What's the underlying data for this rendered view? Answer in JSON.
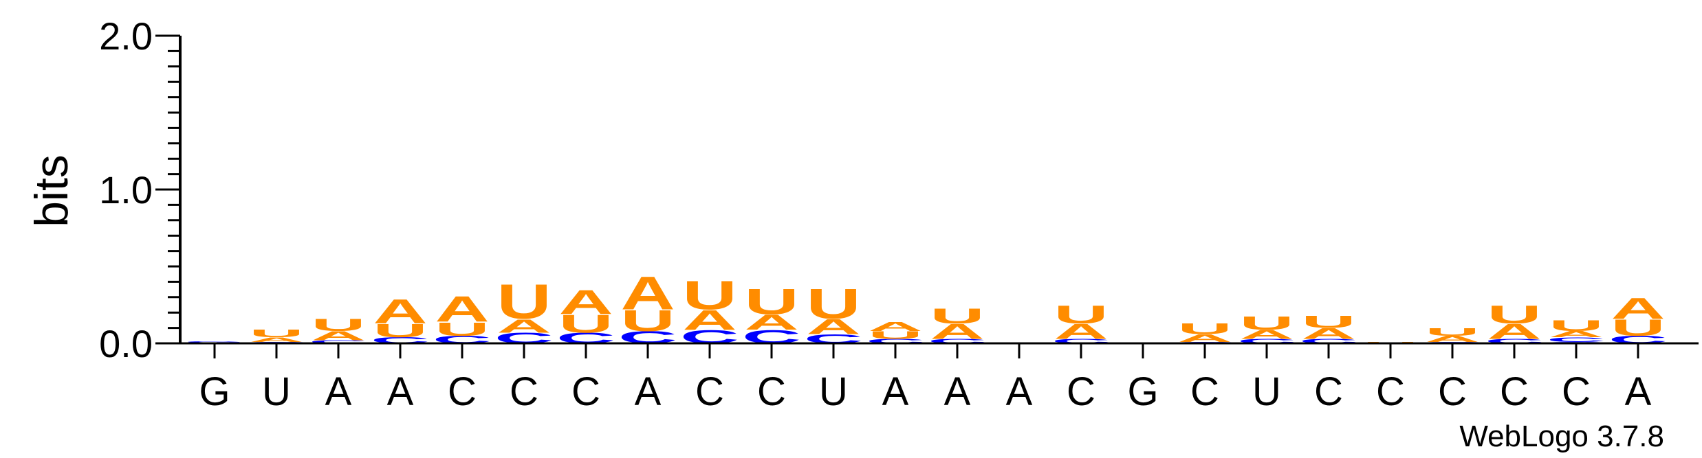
{
  "chart_data": {
    "type": "sequence-logo",
    "ylabel": "bits",
    "ylim": [
      0,
      2.0
    ],
    "yticks": [
      "0.0",
      "1.0",
      "2.0"
    ],
    "xticks": [
      "G",
      "U",
      "A",
      "A",
      "C",
      "C",
      "C",
      "A",
      "C",
      "C",
      "U",
      "A",
      "A",
      "A",
      "C",
      "G",
      "C",
      "U",
      "C",
      "C",
      "C",
      "C",
      "C",
      "A"
    ],
    "credit": "WebLogo 3.7.8",
    "colors": {
      "A": "#ff8c00",
      "U": "#ff8c00",
      "C": "#0000ff",
      "G": "#0000ff"
    },
    "columns": [
      {
        "stack": [
          {
            "letter": "C",
            "bits": 0.005
          },
          {
            "letter": "G",
            "bits": 0.01
          }
        ]
      },
      {
        "stack": [
          {
            "letter": "C",
            "bits": 0.01
          },
          {
            "letter": "A",
            "bits": 0.03
          },
          {
            "letter": "U",
            "bits": 0.05
          }
        ]
      },
      {
        "stack": [
          {
            "letter": "C",
            "bits": 0.02
          },
          {
            "letter": "A",
            "bits": 0.06
          },
          {
            "letter": "U",
            "bits": 0.08
          }
        ]
      },
      {
        "stack": [
          {
            "letter": "C",
            "bits": 0.04
          },
          {
            "letter": "U",
            "bits": 0.09
          },
          {
            "letter": "A",
            "bits": 0.16
          }
        ]
      },
      {
        "stack": [
          {
            "letter": "C",
            "bits": 0.05
          },
          {
            "letter": "U",
            "bits": 0.09
          },
          {
            "letter": "A",
            "bits": 0.17
          }
        ]
      },
      {
        "stack": [
          {
            "letter": "C",
            "bits": 0.07
          },
          {
            "letter": "A",
            "bits": 0.09
          },
          {
            "letter": "U",
            "bits": 0.23
          }
        ]
      },
      {
        "stack": [
          {
            "letter": "C",
            "bits": 0.07
          },
          {
            "letter": "U",
            "bits": 0.12
          },
          {
            "letter": "A",
            "bits": 0.16
          }
        ]
      },
      {
        "stack": [
          {
            "letter": "C",
            "bits": 0.08
          },
          {
            "letter": "U",
            "bits": 0.14
          },
          {
            "letter": "A",
            "bits": 0.22
          }
        ]
      },
      {
        "stack": [
          {
            "letter": "C",
            "bits": 0.09
          },
          {
            "letter": "A",
            "bits": 0.13
          },
          {
            "letter": "U",
            "bits": 0.19
          }
        ]
      },
      {
        "stack": [
          {
            "letter": "C",
            "bits": 0.09
          },
          {
            "letter": "A",
            "bits": 0.1
          },
          {
            "letter": "U",
            "bits": 0.17
          }
        ]
      },
      {
        "stack": [
          {
            "letter": "C",
            "bits": 0.06
          },
          {
            "letter": "A",
            "bits": 0.1
          },
          {
            "letter": "U",
            "bits": 0.2
          }
        ]
      },
      {
        "stack": [
          {
            "letter": "C",
            "bits": 0.03
          },
          {
            "letter": "U",
            "bits": 0.05
          },
          {
            "letter": "A",
            "bits": 0.06
          }
        ]
      },
      {
        "stack": [
          {
            "letter": "C",
            "bits": 0.03
          },
          {
            "letter": "A",
            "bits": 0.1
          },
          {
            "letter": "U",
            "bits": 0.1
          }
        ]
      },
      {
        "stack": []
      },
      {
        "stack": [
          {
            "letter": "C",
            "bits": 0.03
          },
          {
            "letter": "A",
            "bits": 0.1
          },
          {
            "letter": "U",
            "bits": 0.12
          }
        ]
      },
      {
        "stack": []
      },
      {
        "stack": [
          {
            "letter": "C",
            "bits": 0.01
          },
          {
            "letter": "A",
            "bits": 0.05
          },
          {
            "letter": "U",
            "bits": 0.07
          }
        ]
      },
      {
        "stack": [
          {
            "letter": "C",
            "bits": 0.03
          },
          {
            "letter": "A",
            "bits": 0.06
          },
          {
            "letter": "U",
            "bits": 0.09
          }
        ]
      },
      {
        "stack": [
          {
            "letter": "C",
            "bits": 0.03
          },
          {
            "letter": "A",
            "bits": 0.07
          },
          {
            "letter": "U",
            "bits": 0.08
          }
        ]
      },
      {
        "stack": [
          {
            "letter": "U",
            "bits": 0.01
          }
        ]
      },
      {
        "stack": [
          {
            "letter": "C",
            "bits": 0.01
          },
          {
            "letter": "A",
            "bits": 0.04
          },
          {
            "letter": "U",
            "bits": 0.05
          }
        ]
      },
      {
        "stack": [
          {
            "letter": "C",
            "bits": 0.03
          },
          {
            "letter": "A",
            "bits": 0.1
          },
          {
            "letter": "U",
            "bits": 0.12
          }
        ]
      },
      {
        "stack": [
          {
            "letter": "G",
            "bits": 0.01
          },
          {
            "letter": "C",
            "bits": 0.03
          },
          {
            "letter": "A",
            "bits": 0.04
          },
          {
            "letter": "U",
            "bits": 0.07
          }
        ]
      },
      {
        "stack": [
          {
            "letter": "C",
            "bits": 0.05
          },
          {
            "letter": "U",
            "bits": 0.11
          },
          {
            "letter": "A",
            "bits": 0.14
          }
        ]
      }
    ]
  }
}
